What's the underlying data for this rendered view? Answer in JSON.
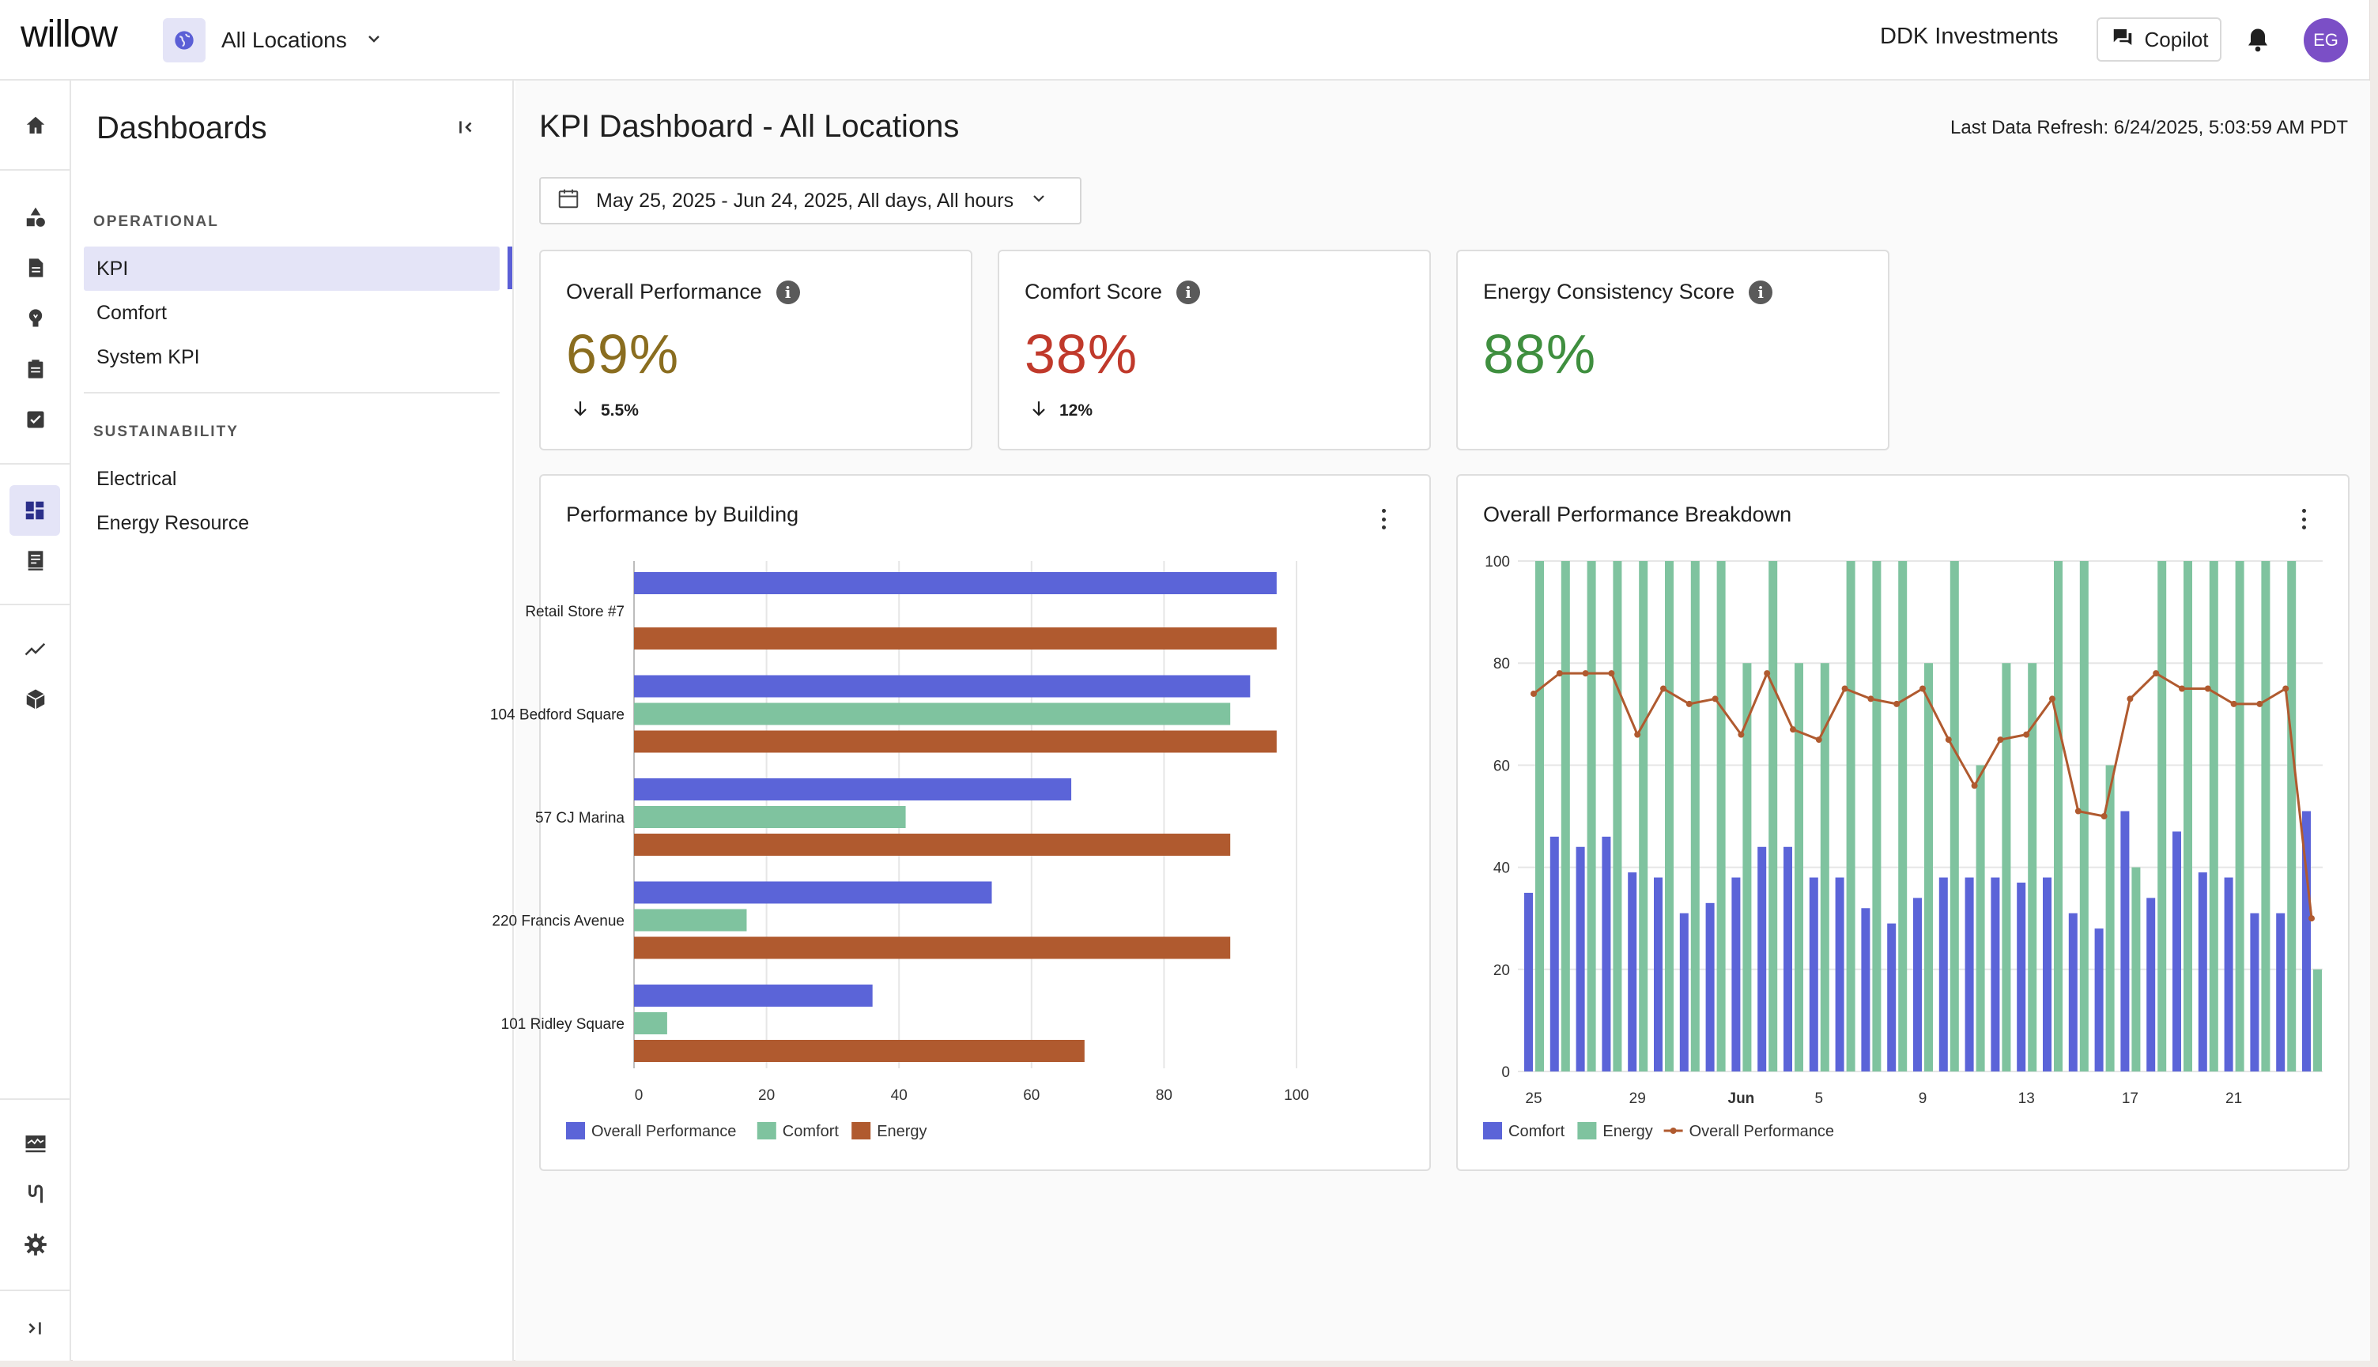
{
  "header": {
    "logo": "willow",
    "location": "All Locations",
    "company": "DDK Investments",
    "copilot_label": "Copilot",
    "avatar_initials": "EG"
  },
  "rail_icons": [
    "home-icon",
    "assets-icon",
    "document-icon",
    "lightbulb-icon",
    "clipboard-icon",
    "checkbox-icon",
    "dashboard-icon",
    "report-icon",
    "trend-icon",
    "cube-icon",
    "monitor-icon",
    "connectors-icon",
    "settings-icon",
    "expand-icon"
  ],
  "sidebar": {
    "title": "Dashboards",
    "sections": [
      {
        "label": "OPERATIONAL",
        "items": [
          "KPI",
          "Comfort",
          "System KPI"
        ]
      },
      {
        "label": "SUSTAINABILITY",
        "items": [
          "Electrical",
          "Energy Resource"
        ]
      }
    ],
    "active_item": "KPI"
  },
  "main": {
    "title": "KPI Dashboard - All Locations",
    "refresh": "Last Data Refresh: 6/24/2025, 5:03:59 AM PDT",
    "date_range": "May 25, 2025 - Jun 24, 2025, All days, All hours"
  },
  "kpis": [
    {
      "label": "Overall Performance",
      "value": "69%",
      "delta": "5.5%",
      "direction": "down",
      "color": "#8a6d1f"
    },
    {
      "label": "Comfort Score",
      "value": "38%",
      "delta": "12%",
      "direction": "down",
      "color": "#c0392b"
    },
    {
      "label": "Energy Consistency Score",
      "value": "88%",
      "delta": "",
      "direction": "",
      "color": "#3f8f3f"
    }
  ],
  "colors": {
    "overall": "#5b64d8",
    "comfort": "#7fc39f",
    "energy": "#b05a2f",
    "accent": "#5b5fd6"
  },
  "chart_data": [
    {
      "type": "bar",
      "orientation": "horizontal",
      "title": "Performance by Building",
      "categories": [
        "Retail Store #7",
        "104 Bedford Square",
        "57 CJ Marina",
        "220 Francis Avenue",
        "101 Ridley Square"
      ],
      "series": [
        {
          "name": "Overall Performance",
          "values": [
            97,
            93,
            66,
            54,
            36
          ]
        },
        {
          "name": "Comfort",
          "values": [
            null,
            90,
            41,
            17,
            5
          ]
        },
        {
          "name": "Energy",
          "values": [
            97,
            97,
            90,
            90,
            68
          ]
        }
      ],
      "xlim": [
        0,
        100
      ],
      "xticks": [
        0,
        20,
        40,
        60,
        80,
        100
      ],
      "legend": "bottom-left"
    },
    {
      "type": "bar",
      "title": "Overall Performance Breakdown",
      "x": [
        "2025-05-25",
        "2025-05-26",
        "2025-05-27",
        "2025-05-28",
        "2025-05-29",
        "2025-05-30",
        "2025-05-31",
        "2025-06-01",
        "2025-06-02",
        "2025-06-03",
        "2025-06-04",
        "2025-06-05",
        "2025-06-06",
        "2025-06-07",
        "2025-06-08",
        "2025-06-09",
        "2025-06-10",
        "2025-06-11",
        "2025-06-12",
        "2025-06-13",
        "2025-06-14",
        "2025-06-15",
        "2025-06-16",
        "2025-06-17",
        "2025-06-18",
        "2025-06-19",
        "2025-06-20",
        "2025-06-21",
        "2025-06-22",
        "2025-06-23",
        "2025-06-24"
      ],
      "xticks": [
        "25",
        "29",
        "Jun",
        "5",
        "9",
        "13",
        "17",
        "21"
      ],
      "series": [
        {
          "name": "Comfort",
          "kind": "bar",
          "values": [
            35,
            46,
            44,
            46,
            39,
            38,
            31,
            33,
            38,
            44,
            44,
            38,
            38,
            32,
            29,
            34,
            38,
            38,
            38,
            37,
            38,
            31,
            28,
            51,
            34,
            47,
            39,
            38,
            31,
            31,
            51
          ]
        },
        {
          "name": "Energy",
          "kind": "bar",
          "values": [
            100,
            100,
            100,
            100,
            100,
            100,
            100,
            100,
            80,
            100,
            80,
            80,
            100,
            100,
            100,
            80,
            100,
            60,
            80,
            80,
            100,
            100,
            60,
            40,
            100,
            100,
            100,
            100,
            100,
            100,
            20
          ]
        },
        {
          "name": "Overall Performance",
          "kind": "line",
          "values": [
            74,
            78,
            78,
            78,
            66,
            75,
            72,
            73,
            66,
            78,
            67,
            65,
            75,
            73,
            72,
            75,
            65,
            56,
            65,
            66,
            73,
            51,
            50,
            73,
            78,
            75,
            75,
            72,
            72,
            75,
            30
          ]
        }
      ],
      "ylim": [
        0,
        100
      ],
      "yticks": [
        0,
        20,
        40,
        60,
        80,
        100
      ],
      "legend": "bottom-left"
    }
  ]
}
